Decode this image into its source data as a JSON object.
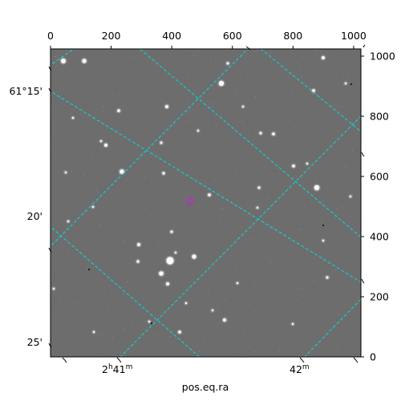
{
  "chart_data": {
    "type": "image",
    "xlabel": "pos.eq.ra",
    "ylabel": "",
    "pixel_axis_x": {
      "range": [
        0,
        1024
      ],
      "ticks": [
        0,
        200,
        400,
        600,
        800,
        1000
      ],
      "position": "top"
    },
    "pixel_axis_y": {
      "range": [
        0,
        1024
      ],
      "ticks": [
        0,
        200,
        400,
        600,
        800,
        1000
      ],
      "position": "right"
    },
    "ra_ticks": [
      {
        "label": "2h41m",
        "main": "2",
        "sup1": "h",
        "mid": "41",
        "sup2": "m"
      },
      {
        "label": "42m",
        "main": "42",
        "sup1": "m",
        "mid": "",
        "sup2": ""
      }
    ],
    "dec_ticks": [
      {
        "label": "61°15'"
      },
      {
        "label": "20'"
      },
      {
        "label": "25'"
      }
    ],
    "grid": "on",
    "grid_color": "#00dede",
    "marker_color": "#d020d0",
    "background_color": "#6e6e6e"
  }
}
